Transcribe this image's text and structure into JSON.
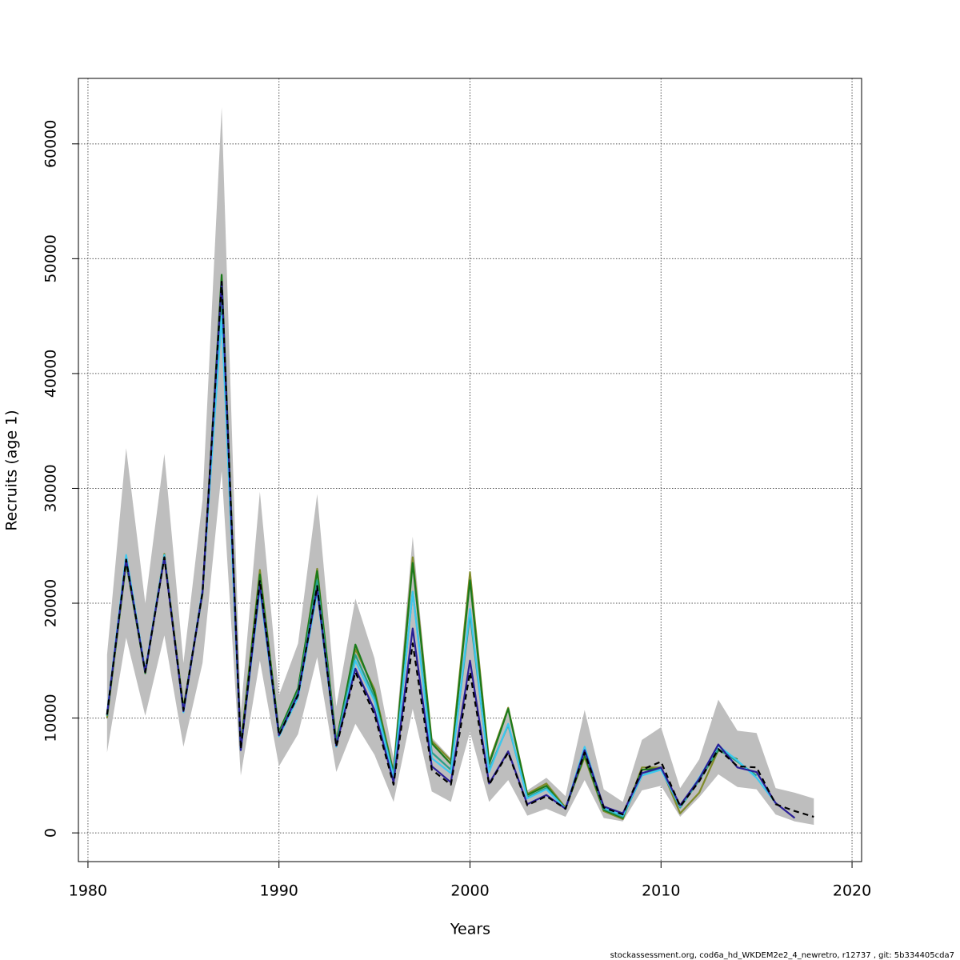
{
  "chart_data": {
    "type": "line",
    "x_label": "Years",
    "y_label": "Recruits (age 1)",
    "x": [
      1981,
      1982,
      1983,
      1984,
      1985,
      1986,
      1987,
      1988,
      1989,
      1990,
      1991,
      1992,
      1993,
      1994,
      1995,
      1996,
      1997,
      1998,
      1999,
      2000,
      2001,
      2002,
      2003,
      2004,
      2005,
      2006,
      2007,
      2008,
      2009,
      2010,
      2011,
      2012,
      2013,
      2014,
      2015,
      2016,
      2017,
      2018
    ],
    "band": {
      "color": "#bebebe",
      "upper": [
        15500,
        33500,
        20000,
        33000,
        14800,
        29000,
        63200,
        10500,
        29700,
        12000,
        16500,
        29500,
        11000,
        20400,
        15200,
        6500,
        25800,
        8300,
        6500,
        22500,
        6300,
        10500,
        3700,
        4800,
        3200,
        10700,
        3800,
        2700,
        8100,
        9200,
        3900,
        6400,
        11600,
        8900,
        8700,
        3900,
        3500,
        3000
      ],
      "lower": [
        7000,
        17000,
        10200,
        17200,
        7500,
        14800,
        31500,
        5000,
        15000,
        5800,
        8600,
        15300,
        5300,
        9500,
        6800,
        2700,
        10800,
        3600,
        2700,
        8800,
        2700,
        4600,
        1500,
        2100,
        1400,
        4600,
        1300,
        1000,
        3700,
        4100,
        1400,
        3100,
        5100,
        4000,
        3800,
        1600,
        1000,
        700
      ]
    },
    "series": [
      {
        "color": "#808b2a",
        "line_style": "solid",
        "values": [
          10000,
          23500,
          14000,
          24300,
          10900,
          20800,
          48200,
          7600,
          22900,
          8700,
          12500,
          23000,
          8000,
          16000,
          12500,
          5300,
          24000,
          8000,
          6300,
          22700,
          6200,
          10900,
          3400,
          4300,
          2200,
          6600,
          1900,
          1200,
          5700,
          5700,
          1700,
          3500,
          7200,
          null,
          null,
          null,
          null,
          null
        ]
      },
      {
        "color": "#1a7a1a",
        "line_style": "solid",
        "values": [
          10200,
          23600,
          13900,
          24000,
          10800,
          21000,
          48600,
          7500,
          22500,
          8800,
          12600,
          22800,
          7900,
          16400,
          12200,
          5200,
          23500,
          7800,
          6000,
          22000,
          6000,
          10800,
          3300,
          4100,
          2100,
          6800,
          2000,
          1300,
          5500,
          5600,
          2300,
          4600,
          7200,
          6400,
          null,
          null,
          null,
          null
        ]
      },
      {
        "color": "#2aa08a",
        "line_style": "solid",
        "values": [
          10200,
          23700,
          14000,
          24100,
          10600,
          20900,
          46500,
          7300,
          21800,
          8600,
          12300,
          22000,
          7800,
          15500,
          11800,
          5000,
          21000,
          7000,
          5500,
          19000,
          5500,
          9400,
          3100,
          3900,
          2100,
          7100,
          2100,
          1400,
          5000,
          5600,
          2200,
          4600,
          7300,
          6200,
          5000,
          null,
          null,
          null
        ]
      },
      {
        "color": "#3cc8f0",
        "line_style": "solid",
        "values": [
          10400,
          24200,
          14100,
          24200,
          10500,
          21200,
          45000,
          7200,
          21200,
          8400,
          11800,
          21000,
          7500,
          15000,
          11500,
          4800,
          21000,
          6500,
          5200,
          19500,
          5300,
          9500,
          3000,
          3800,
          2100,
          7500,
          2200,
          1500,
          5000,
          5500,
          2300,
          4800,
          7600,
          6300,
          4800,
          2600,
          null,
          null
        ]
      },
      {
        "color": "#2a1e96",
        "line_style": "solid",
        "values": [
          10300,
          23800,
          14000,
          24000,
          10600,
          21000,
          48000,
          7200,
          21600,
          8500,
          12100,
          21300,
          7600,
          14300,
          10700,
          4400,
          17800,
          5800,
          4400,
          15000,
          4300,
          7100,
          2500,
          3300,
          2100,
          7200,
          2300,
          1700,
          5200,
          5700,
          2400,
          4700,
          7700,
          5700,
          5300,
          2600,
          1300,
          null
        ]
      },
      {
        "color": "#000000",
        "line_style": "dashed",
        "values": [
          10300,
          23800,
          14000,
          24000,
          10700,
          21000,
          48000,
          7300,
          22000,
          8500,
          12000,
          21500,
          7500,
          14000,
          10300,
          4200,
          16500,
          5500,
          4200,
          14000,
          4200,
          7000,
          2400,
          3200,
          2100,
          7000,
          2200,
          1600,
          5500,
          6200,
          2300,
          4500,
          7300,
          5800,
          5700,
          2500,
          1900,
          1400
        ]
      }
    ],
    "xlim": [
      1979.5,
      2020.5
    ],
    "ylim": [
      -2500,
      65700
    ],
    "xticks": [
      1980,
      1990,
      2000,
      2010,
      2020
    ],
    "yticks": [
      0,
      10000,
      20000,
      30000,
      40000,
      50000,
      60000
    ],
    "grid": true
  },
  "footer": "stockassessment.org, cod6a_hd_WKDEM2e2_4_newretro, r12737 , git: 5b334405cda7"
}
